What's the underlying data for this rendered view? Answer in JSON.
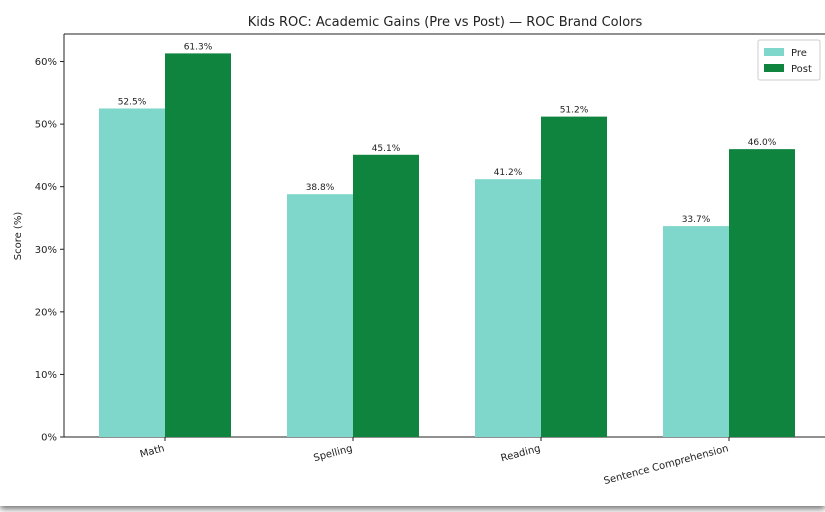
{
  "chart_data": {
    "type": "bar",
    "title": "Kids ROC: Academic Gains (Pre vs Post) — ROC Brand Colors",
    "xlabel": "",
    "ylabel": "Score (%)",
    "categories": [
      "Math",
      "Spelling",
      "Reading",
      "Sentence Comprehension"
    ],
    "series": [
      {
        "name": "Pre",
        "color": "#7fd6cb",
        "values": [
          52.5,
          38.8,
          41.2,
          33.7
        ],
        "labels": [
          "52.5%",
          "38.8%",
          "41.2%",
          "33.7%"
        ]
      },
      {
        "name": "Post",
        "color": "#0f843f",
        "values": [
          61.3,
          45.1,
          51.2,
          46.0
        ],
        "labels": [
          "61.3%",
          "45.1%",
          "51.2%",
          "46.0%"
        ]
      }
    ],
    "ylim": [
      0,
      64.4
    ],
    "yticks": [
      0,
      10,
      20,
      30,
      40,
      50,
      60
    ],
    "ytick_labels": [
      "0%",
      "10%",
      "20%",
      "30%",
      "40%",
      "50%",
      "60%"
    ],
    "grid": false,
    "legend_position": "top-right"
  }
}
